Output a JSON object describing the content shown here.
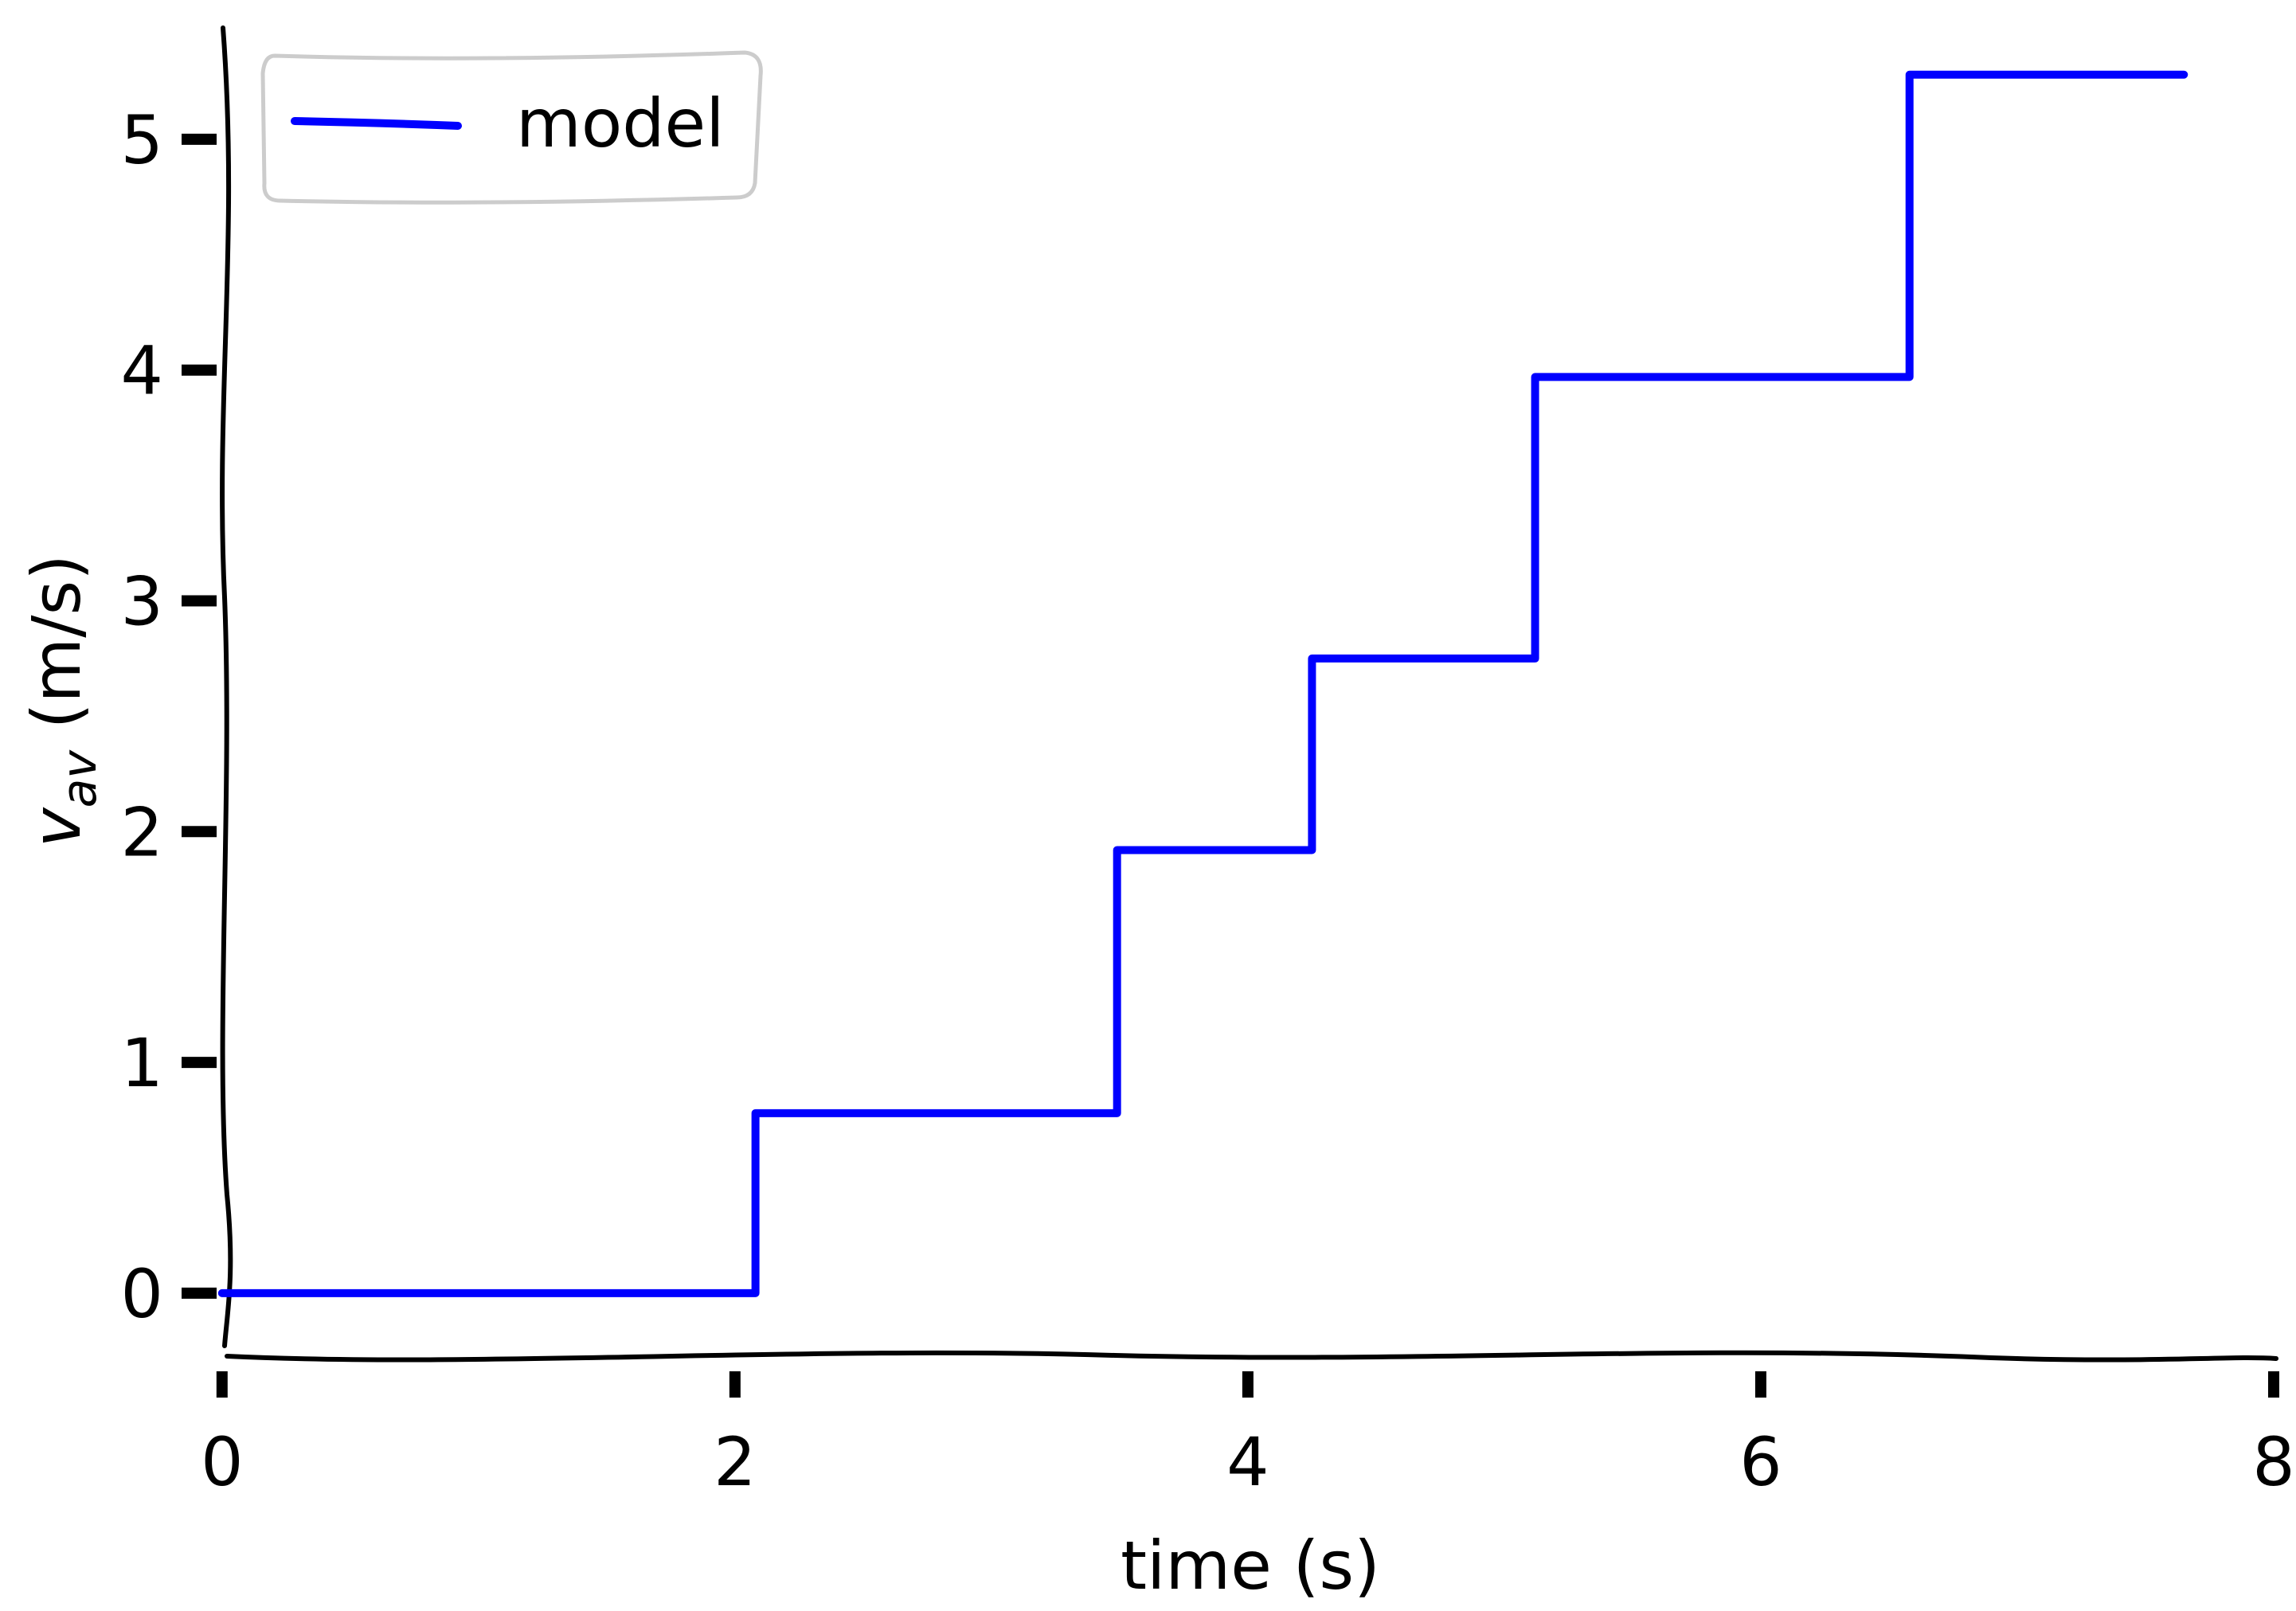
{
  "chart_data": {
    "type": "line",
    "style": "xkcd",
    "title": "",
    "xlabel": "time (s)",
    "ylabel": {
      "base": "v",
      "subscript": "av",
      "suffix": " (m/s)"
    },
    "xlim": [
      -0.4,
      8
    ],
    "ylim": [
      -0.28,
      5.5
    ],
    "xticks": [
      0,
      2,
      4,
      6,
      8
    ],
    "xtick_labels": [
      "0",
      "2",
      "4",
      "6",
      "8"
    ],
    "yticks": [
      0,
      1,
      2,
      3,
      4,
      5
    ],
    "ytick_labels": [
      "0",
      "1",
      "2",
      "3",
      "4",
      "5"
    ],
    "grid": false,
    "legend": {
      "position": "top-left"
    },
    "series": [
      {
        "name": "model",
        "color": "#0000ff",
        "step": "post",
        "x": [
          0,
          2.08,
          3.49,
          4.25,
          5.12,
          6.58,
          7.65
        ],
        "y": [
          0,
          0.78,
          1.92,
          2.75,
          3.97,
          5.28,
          5.28
        ]
      }
    ]
  }
}
